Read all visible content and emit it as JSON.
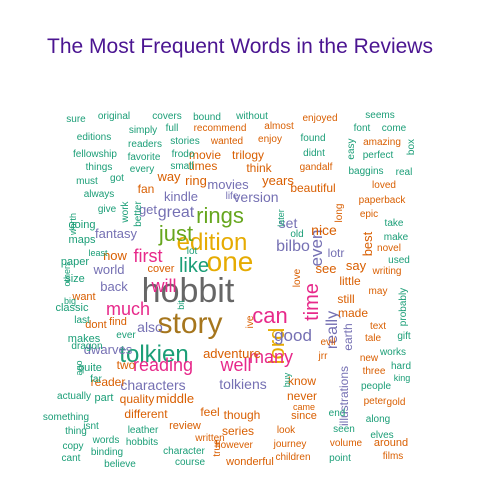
{
  "chart_data": {
    "type": "wordcloud",
    "title": "The Most Frequent Words in the Reviews",
    "colors": {
      "title": "#4b1591",
      "hobbit": "#666666",
      "story": "#a6761d",
      "tolkien": "#1b9e77",
      "one": "#e6ab02",
      "edition": "#e6ab02",
      "lord": "#e6ab02",
      "rings": "#66a61e",
      "time": "#e7298a",
      "reading": "#e7298a",
      "can": "#e7298a",
      "just": "#66a61e",
      "like": "#1b9e77",
      "teal": "#1b9e77",
      "orange": "#d95f02",
      "purple": "#7570b3",
      "pink": "#e7298a",
      "green": "#66a61e",
      "gold": "#e6ab02",
      "brown": "#a6761d",
      "gray": "#666666"
    },
    "words": [
      {
        "text": "hobbit",
        "color": "gray"
      },
      {
        "text": "story",
        "color": "brown"
      },
      {
        "text": "tolkien",
        "color": "teal"
      },
      {
        "text": "one",
        "color": "gold"
      },
      {
        "text": "edition",
        "color": "gold"
      },
      {
        "text": "lord",
        "color": "gold"
      },
      {
        "text": "rings",
        "color": "green"
      },
      {
        "text": "time",
        "color": "pink"
      },
      {
        "text": "just",
        "color": "green"
      },
      {
        "text": "reading",
        "color": "pink"
      },
      {
        "text": "can",
        "color": "pink"
      },
      {
        "text": "like",
        "color": "teal"
      },
      {
        "text": "well",
        "color": "pink"
      },
      {
        "text": "much",
        "color": "pink"
      },
      {
        "text": "many",
        "color": "pink"
      },
      {
        "text": "first",
        "color": "pink"
      },
      {
        "text": "good",
        "color": "purple"
      },
      {
        "text": "will",
        "color": "pink"
      },
      {
        "text": "even",
        "color": "purple"
      },
      {
        "text": "great",
        "color": "purple"
      },
      {
        "text": "really",
        "color": "purple"
      },
      {
        "text": "bilbo",
        "color": "purple"
      },
      {
        "text": "characters",
        "color": "purple"
      },
      {
        "text": "tolkiens",
        "color": "purple"
      },
      {
        "text": "version",
        "color": "purple"
      },
      {
        "text": "also",
        "color": "purple"
      },
      {
        "text": "kindle",
        "color": "purple"
      },
      {
        "text": "movies",
        "color": "purple"
      },
      {
        "text": "set",
        "color": "purple"
      },
      {
        "text": "nice",
        "color": "orange"
      },
      {
        "text": "lotr",
        "color": "purple"
      },
      {
        "text": "fantasy",
        "color": "purple"
      },
      {
        "text": "dwarves",
        "color": "purple"
      },
      {
        "text": "adventure",
        "color": "orange"
      },
      {
        "text": "middle",
        "color": "orange"
      },
      {
        "text": "now",
        "color": "orange"
      },
      {
        "text": "back",
        "color": "purple"
      },
      {
        "text": "world",
        "color": "purple"
      },
      {
        "text": "get",
        "color": "purple"
      },
      {
        "text": "see",
        "color": "orange"
      },
      {
        "text": "say",
        "color": "orange"
      },
      {
        "text": "best",
        "color": "orange"
      },
      {
        "text": "years",
        "color": "orange"
      },
      {
        "text": "ring",
        "color": "orange"
      },
      {
        "text": "way",
        "color": "orange"
      },
      {
        "text": "movie",
        "color": "orange"
      },
      {
        "text": "trilogy",
        "color": "orange"
      },
      {
        "text": "beautiful",
        "color": "orange"
      },
      {
        "text": "think",
        "color": "orange"
      },
      {
        "text": "times",
        "color": "orange"
      },
      {
        "text": "fan",
        "color": "orange"
      },
      {
        "text": "made",
        "color": "orange"
      },
      {
        "text": "still",
        "color": "orange"
      },
      {
        "text": "little",
        "color": "orange"
      },
      {
        "text": "illustrations",
        "color": "purple"
      },
      {
        "text": "earth",
        "color": "purple"
      },
      {
        "text": "two",
        "color": "orange"
      },
      {
        "text": "reader",
        "color": "orange"
      },
      {
        "text": "quality",
        "color": "orange"
      },
      {
        "text": "different",
        "color": "orange"
      },
      {
        "text": "feel",
        "color": "orange"
      },
      {
        "text": "though",
        "color": "orange"
      },
      {
        "text": "never",
        "color": "orange"
      },
      {
        "text": "know",
        "color": "orange"
      },
      {
        "text": "series",
        "color": "orange"
      },
      {
        "text": "review",
        "color": "orange"
      },
      {
        "text": "find",
        "color": "orange"
      },
      {
        "text": "cover",
        "color": "orange"
      },
      {
        "text": "dont",
        "color": "orange"
      },
      {
        "text": "want",
        "color": "orange"
      },
      {
        "text": "classic",
        "color": "teal"
      },
      {
        "text": "maps",
        "color": "teal"
      },
      {
        "text": "going",
        "color": "teal"
      },
      {
        "text": "paper",
        "color": "teal"
      },
      {
        "text": "size",
        "color": "teal"
      },
      {
        "text": "quite",
        "color": "teal"
      },
      {
        "text": "makes",
        "color": "teal"
      },
      {
        "text": "part",
        "color": "teal"
      },
      {
        "text": "ever",
        "color": "teal"
      },
      {
        "text": "actually",
        "color": "teal"
      },
      {
        "text": "something",
        "color": "teal"
      },
      {
        "text": "thing",
        "color": "teal"
      },
      {
        "text": "copy",
        "color": "teal"
      },
      {
        "text": "cant",
        "color": "teal"
      },
      {
        "text": "words",
        "color": "teal"
      },
      {
        "text": "binding",
        "color": "teal"
      },
      {
        "text": "hobbits",
        "color": "teal"
      },
      {
        "text": "leather",
        "color": "teal"
      },
      {
        "text": "character",
        "color": "teal"
      },
      {
        "text": "course",
        "color": "teal"
      },
      {
        "text": "believe",
        "color": "teal"
      },
      {
        "text": "written",
        "color": "orange"
      },
      {
        "text": "however",
        "color": "orange"
      },
      {
        "text": "wonderful",
        "color": "orange"
      },
      {
        "text": "journey",
        "color": "orange"
      },
      {
        "text": "children",
        "color": "orange"
      },
      {
        "text": "look",
        "color": "orange"
      },
      {
        "text": "since",
        "color": "orange"
      },
      {
        "text": "came",
        "color": "orange"
      },
      {
        "text": "end",
        "color": "teal"
      },
      {
        "text": "seen",
        "color": "teal"
      },
      {
        "text": "volume",
        "color": "orange"
      },
      {
        "text": "point",
        "color": "teal"
      },
      {
        "text": "along",
        "color": "teal"
      },
      {
        "text": "elves",
        "color": "teal"
      },
      {
        "text": "around",
        "color": "orange"
      },
      {
        "text": "films",
        "color": "orange"
      },
      {
        "text": "peter",
        "color": "orange"
      },
      {
        "text": "gold",
        "color": "orange"
      },
      {
        "text": "people",
        "color": "teal"
      },
      {
        "text": "works",
        "color": "teal"
      },
      {
        "text": "hard",
        "color": "teal"
      },
      {
        "text": "king",
        "color": "teal"
      },
      {
        "text": "gift",
        "color": "teal"
      },
      {
        "text": "probably",
        "color": "teal"
      },
      {
        "text": "text",
        "color": "orange"
      },
      {
        "text": "tale",
        "color": "orange"
      },
      {
        "text": "new",
        "color": "orange"
      },
      {
        "text": "three",
        "color": "orange"
      },
      {
        "text": "evil",
        "color": "orange"
      },
      {
        "text": "jrr",
        "color": "orange"
      },
      {
        "text": "buy",
        "color": "teal"
      },
      {
        "text": "may",
        "color": "orange"
      },
      {
        "text": "writing",
        "color": "orange"
      },
      {
        "text": "used",
        "color": "teal"
      },
      {
        "text": "novel",
        "color": "orange"
      },
      {
        "text": "make",
        "color": "teal"
      },
      {
        "text": "take",
        "color": "teal"
      },
      {
        "text": "epic",
        "color": "orange"
      },
      {
        "text": "paperback",
        "color": "orange"
      },
      {
        "text": "long",
        "color": "orange"
      },
      {
        "text": "loved",
        "color": "orange"
      },
      {
        "text": "baggins",
        "color": "teal"
      },
      {
        "text": "real",
        "color": "teal"
      },
      {
        "text": "perfect",
        "color": "teal"
      },
      {
        "text": "amazing",
        "color": "orange"
      },
      {
        "text": "font",
        "color": "teal"
      },
      {
        "text": "come",
        "color": "teal"
      },
      {
        "text": "seems",
        "color": "teal"
      },
      {
        "text": "box",
        "color": "teal"
      },
      {
        "text": "easy",
        "color": "teal"
      },
      {
        "text": "enjoyed",
        "color": "orange"
      },
      {
        "text": "found",
        "color": "teal"
      },
      {
        "text": "didnt",
        "color": "teal"
      },
      {
        "text": "gandalf",
        "color": "orange"
      },
      {
        "text": "enjoy",
        "color": "orange"
      },
      {
        "text": "seen2",
        "color": "teal"
      },
      {
        "text": "almost",
        "color": "orange"
      },
      {
        "text": "without",
        "color": "teal"
      },
      {
        "text": "bound",
        "color": "teal"
      },
      {
        "text": "covers",
        "color": "teal"
      },
      {
        "text": "recommend",
        "color": "orange"
      },
      {
        "text": "wanted",
        "color": "orange"
      },
      {
        "text": "full",
        "color": "teal"
      },
      {
        "text": "stories",
        "color": "teal"
      },
      {
        "text": "small",
        "color": "teal"
      },
      {
        "text": "frodo",
        "color": "teal"
      },
      {
        "text": "original",
        "color": "teal"
      },
      {
        "text": "simply",
        "color": "teal"
      },
      {
        "text": "readers",
        "color": "teal"
      },
      {
        "text": "favorite",
        "color": "teal"
      },
      {
        "text": "every",
        "color": "teal"
      },
      {
        "text": "sure",
        "color": "teal"
      },
      {
        "text": "editions",
        "color": "teal"
      },
      {
        "text": "fellowship",
        "color": "teal"
      },
      {
        "text": "things",
        "color": "teal"
      },
      {
        "text": "must",
        "color": "teal"
      },
      {
        "text": "always",
        "color": "teal"
      },
      {
        "text": "got",
        "color": "teal"
      },
      {
        "text": "give",
        "color": "teal"
      },
      {
        "text": "work",
        "color": "teal"
      },
      {
        "text": "better",
        "color": "teal"
      },
      {
        "text": "worth",
        "color": "teal"
      },
      {
        "text": "least",
        "color": "teal"
      },
      {
        "text": "others",
        "color": "teal"
      },
      {
        "text": "big",
        "color": "teal"
      },
      {
        "text": "last",
        "color": "teal"
      },
      {
        "text": "dragon",
        "color": "teal"
      },
      {
        "text": "ago",
        "color": "teal"
      },
      {
        "text": "far",
        "color": "teal"
      },
      {
        "text": "isnt",
        "color": "teal"
      },
      {
        "text": "life",
        "color": "purple"
      },
      {
        "text": "later",
        "color": "teal"
      },
      {
        "text": "old",
        "color": "teal"
      },
      {
        "text": "love",
        "color": "orange"
      },
      {
        "text": "lot",
        "color": "teal"
      },
      {
        "text": "bit",
        "color": "teal"
      },
      {
        "text": "ive",
        "color": "orange"
      },
      {
        "text": "true",
        "color": "orange"
      },
      {
        "text": "the",
        "color": "teal"
      }
    ]
  }
}
